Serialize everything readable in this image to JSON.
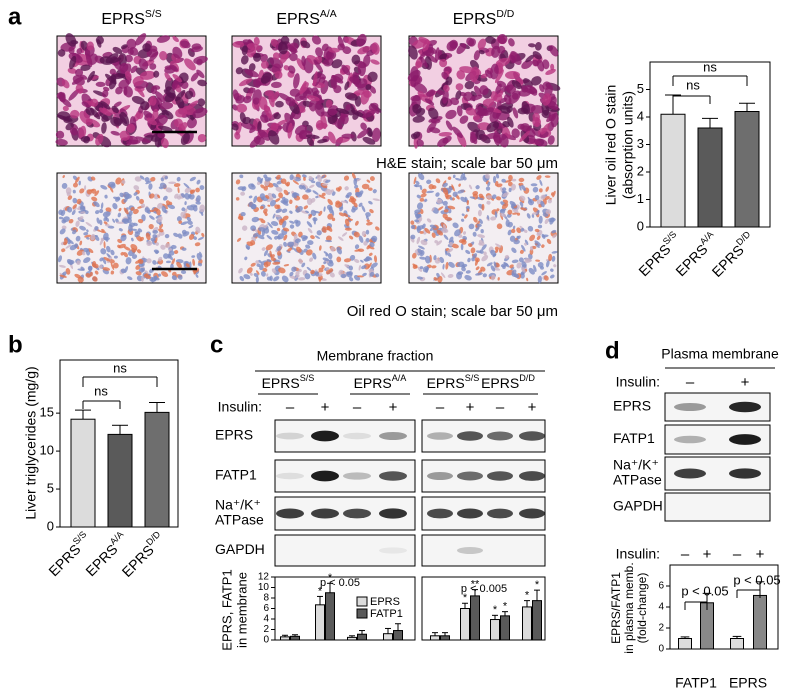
{
  "figure": {
    "panel_labels": [
      "a",
      "b",
      "c",
      "d"
    ],
    "a": {
      "column_titles": [
        "EPRS",
        "EPRS",
        "EPRS"
      ],
      "column_superscripts": [
        "S/S",
        "A/A",
        "D/D"
      ],
      "captions": [
        "H&E stain; scale bar 50 μm",
        "Oil red O stain; scale bar 50 μm"
      ]
    },
    "c": {
      "title": "Membrane fraction",
      "insulin_label": "Insulin:",
      "groups": [
        "EPRS",
        "EPRS",
        "EPRS",
        "EPRS"
      ],
      "group_superscripts": [
        "S/S",
        "A/A",
        "S/S",
        "D/D"
      ],
      "rows": [
        [
          "EPRS"
        ],
        [
          "FATP1"
        ],
        [
          "Na⁺/K⁺",
          "ATPase"
        ],
        [
          "GAPDH"
        ]
      ]
    },
    "d": {
      "title": "Plasma membrane",
      "insulin_label": "Insulin:",
      "signs": [
        "–",
        "+"
      ],
      "rows": [
        [
          "EPRS"
        ],
        [
          "FATP1"
        ],
        [
          "Na⁺/K⁺",
          "ATPase"
        ],
        [
          "GAPDH"
        ]
      ]
    }
  },
  "chart_data": [
    {
      "type": "bar",
      "ylabel": [
        "Liver oil red O stain",
        "(absorption units)"
      ],
      "categories": [
        "EPRS",
        "EPRS",
        "EPRS"
      ],
      "category_superscripts": [
        "S/S",
        "A/A",
        "D/D"
      ],
      "values": [
        4.1,
        3.6,
        4.2
      ],
      "errors": [
        0.7,
        0.35,
        0.3
      ],
      "colors": [
        "#dcdcdc",
        "#5a5a5a",
        "#6e6e6e"
      ],
      "ylim": [
        0,
        6
      ],
      "yticks": [
        0,
        1,
        2,
        3,
        4,
        5
      ],
      "annotations": [
        "ns",
        "ns"
      ]
    },
    {
      "type": "bar",
      "ylabel": [
        "Liver triglycerides (mg/g)"
      ],
      "categories": [
        "EPRS",
        "EPRS",
        "EPRS"
      ],
      "category_superscripts": [
        "S/S",
        "A/A",
        "D/D"
      ],
      "values": [
        14.2,
        12.2,
        15.1
      ],
      "errors": [
        1.2,
        1.2,
        1.3
      ],
      "colors": [
        "#dcdcdc",
        "#5a5a5a",
        "#6e6e6e"
      ],
      "ylim": [
        0,
        22
      ],
      "yticks": [
        0,
        5,
        10,
        15
      ],
      "annotations": [
        "ns",
        "ns"
      ]
    },
    {
      "type": "grouped_bar",
      "ylabel": [
        "EPRS, FATP1",
        "in membrane"
      ],
      "categories": [
        "–",
        "+",
        "–",
        "+"
      ],
      "series": [
        {
          "name": "EPRS",
          "color": "#dcdcdc",
          "values": [
            0.6,
            6.7,
            0.5,
            1.2
          ],
          "errors": [
            0.3,
            1.6,
            0.3,
            1.0
          ],
          "stars": [
            null,
            "*",
            null,
            null
          ]
        },
        {
          "name": "FATP1",
          "color": "#5a5a5a",
          "values": [
            0.7,
            9.0,
            1.1,
            1.8
          ],
          "errors": [
            0.3,
            1.8,
            0.7,
            1.3
          ],
          "stars": [
            null,
            "*",
            null,
            null
          ]
        }
      ],
      "ylim": [
        0,
        12
      ],
      "yticks": [
        0,
        2,
        4,
        6,
        8,
        10,
        12
      ],
      "annotations": [
        "p < 0.05"
      ]
    },
    {
      "type": "grouped_bar",
      "categories": [
        "–",
        "+",
        "–",
        "+"
      ],
      "series": [
        {
          "color": "#dcdcdc",
          "values": [
            0.8,
            6.0,
            3.9,
            6.3
          ],
          "errors": [
            0.6,
            1.0,
            0.8,
            1.2
          ],
          "stars": [
            null,
            "*",
            "*",
            "*"
          ]
        },
        {
          "color": "#5a5a5a",
          "values": [
            0.8,
            8.4,
            4.6,
            7.5
          ],
          "errors": [
            0.6,
            1.2,
            0.8,
            2.0
          ],
          "stars": [
            null,
            "**",
            "*",
            "*"
          ]
        }
      ],
      "ylim": [
        0,
        12
      ],
      "annotations": [
        "p < 0.005"
      ]
    },
    {
      "type": "bar",
      "ylabel": [
        "EPRS/FATP1",
        "in plasma memb.",
        "(fold-change)"
      ],
      "insulin_label": "Insulin:",
      "categories": [
        "–",
        "+",
        "–",
        "+"
      ],
      "groups": [
        "FATP1",
        "EPRS"
      ],
      "values": [
        1.0,
        4.4,
        1.0,
        5.1
      ],
      "errors": [
        0.15,
        0.9,
        0.2,
        1.3
      ],
      "colors": [
        "#dcdcdc",
        "#888888",
        "#dcdcdc",
        "#888888"
      ],
      "ylim": [
        0,
        8
      ],
      "yticks": [
        0,
        2,
        4,
        6
      ],
      "annotations": [
        "p < 0.05",
        "p < 0.05"
      ]
    }
  ]
}
